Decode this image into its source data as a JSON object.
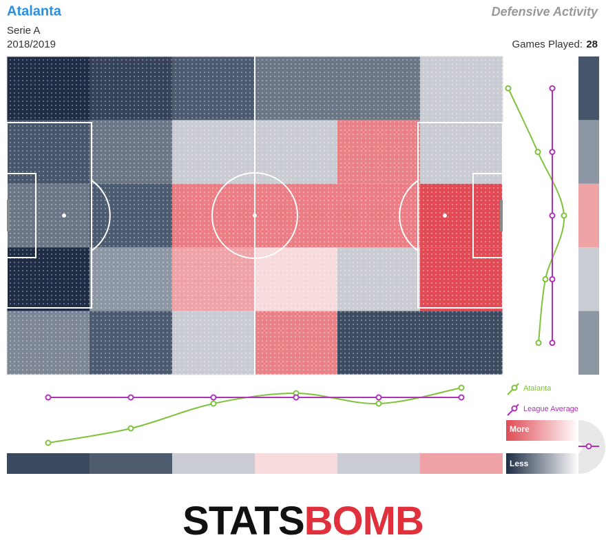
{
  "chart_data": {
    "type": "heatmap",
    "title": "Atalanta",
    "subtitle": "Defensive Activity",
    "competition": "Serie A",
    "season": "2018/2019",
    "games_label": "Games Played:",
    "games": 28,
    "cells": [
      [
        "#1e2d45",
        "#34435a",
        "#4d5b70",
        "#6b7687",
        "#6b7687",
        "#c9ccd2"
      ],
      [
        "#46556a",
        "#6b7687",
        "#c9ccd2",
        "#c9ccd2",
        "#e98287",
        "#c9ccd2"
      ],
      [
        "#6b7687",
        "#4d5b70",
        "#ea7e84",
        "#ea7e84",
        "#ea7e84",
        "#e04b55"
      ],
      [
        "#1e2d45",
        "#8d96a3",
        "#f0a3a7",
        "#f6dadc",
        "#c9ccd2",
        "#e04b55"
      ],
      [
        "#7e8795",
        "#4d5b70",
        "#c9ccd2",
        "#e98287",
        "#3e4c62",
        "#3e4c62"
      ]
    ],
    "column_colors": [
      "#3a4860",
      "#4f5c70",
      "#c9ccd2",
      "#f6dadc",
      "#c9ccd2",
      "#f0a3a7"
    ],
    "row_colors": [
      "#46556a",
      "#8d96a3",
      "#f0a3a7",
      "#c9ccd2",
      "#8d96a3"
    ],
    "x_profile": {
      "ylim": [
        -70,
        20
      ],
      "series": [
        {
          "name": "Atalanta",
          "color": "#7dc23a",
          "values": [
            -66,
            -45,
            -9,
            6,
            -9,
            14
          ]
        },
        {
          "name": "League Average",
          "color": "#b030b8",
          "values": [
            0,
            0,
            0,
            0,
            0,
            0
          ]
        }
      ]
    },
    "y_profile": {
      "xlim": [
        -70,
        20
      ],
      "series": [
        {
          "name": "Atalanta",
          "color": "#7dc23a",
          "values": [
            -64,
            -21,
            17,
            -10,
            -20
          ]
        },
        {
          "name": "League Average",
          "color": "#b030b8",
          "values": [
            0,
            0,
            0,
            0,
            0
          ]
        }
      ]
    },
    "scale_labels": [
      "More",
      "Less"
    ],
    "scale_colors": [
      "#e04b55",
      "#1e2d45"
    ],
    "logo": [
      "STATS",
      "BOMB"
    ]
  }
}
